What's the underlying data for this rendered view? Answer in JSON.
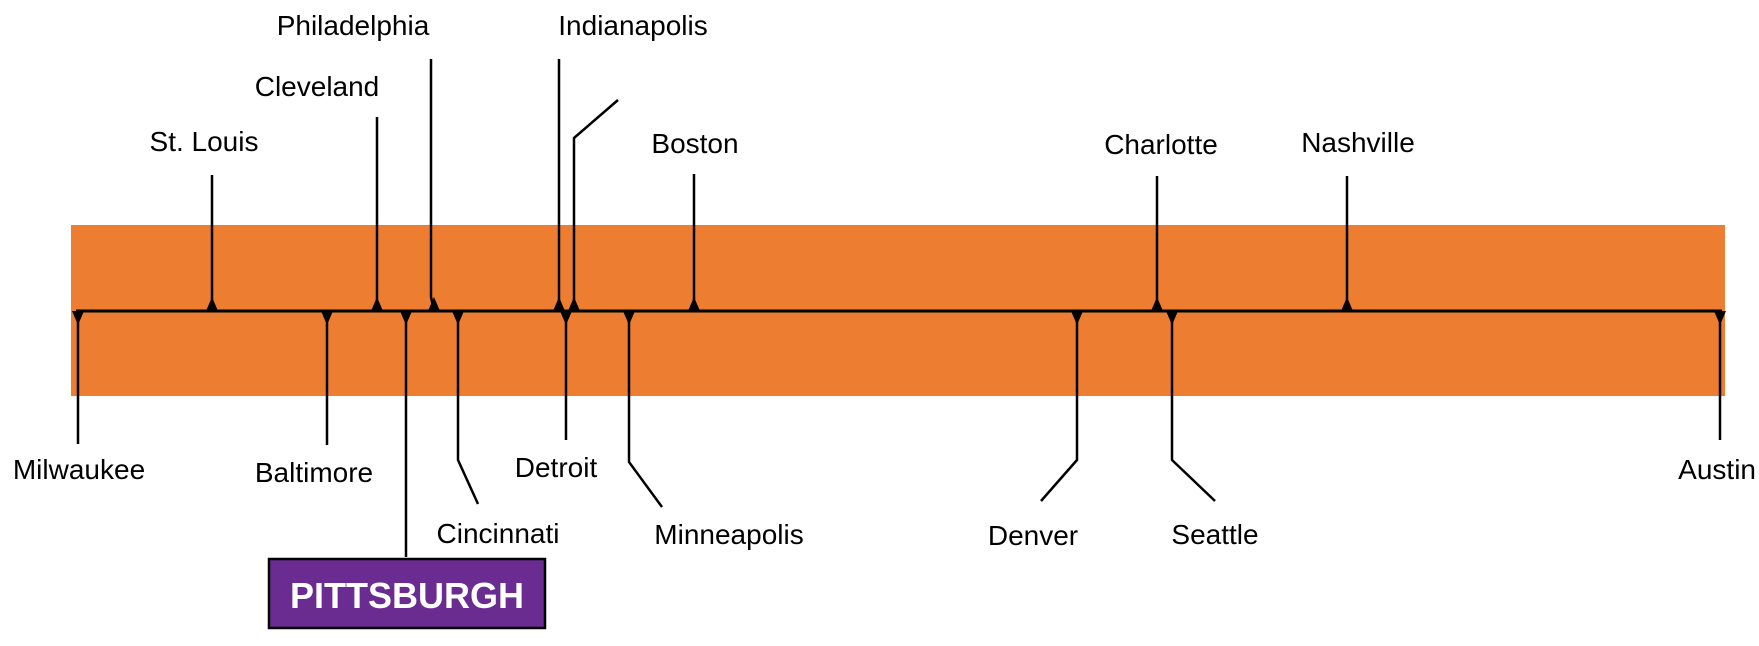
{
  "colors": {
    "band": "#ED7D31",
    "line": "#000000",
    "highlight_fill": "#6A2C91",
    "highlight_text": "#FFFFFF"
  },
  "markers_above": [
    {
      "id": "st-louis",
      "label": "St. Louis"
    },
    {
      "id": "cleveland",
      "label": "Cleveland"
    },
    {
      "id": "philadelphia",
      "label": "Philadelphia"
    },
    {
      "id": "indianapolis",
      "label": "Indianapolis"
    },
    {
      "id": "unlabeled",
      "label": ""
    },
    {
      "id": "boston",
      "label": "Boston"
    },
    {
      "id": "charlotte",
      "label": "Charlotte"
    },
    {
      "id": "nashville",
      "label": "Nashville"
    }
  ],
  "markers_below": [
    {
      "id": "milwaukee",
      "label": "Milwaukee"
    },
    {
      "id": "baltimore",
      "label": "Baltimore"
    },
    {
      "id": "pittsburgh",
      "label": "PITTSBURGH",
      "highlighted": true
    },
    {
      "id": "cincinnati",
      "label": "Cincinnati"
    },
    {
      "id": "detroit",
      "label": "Detroit"
    },
    {
      "id": "minneapolis",
      "label": "Minneapolis"
    },
    {
      "id": "denver",
      "label": "Denver"
    },
    {
      "id": "seattle",
      "label": "Seattle"
    },
    {
      "id": "austin",
      "label": "Austin"
    }
  ]
}
